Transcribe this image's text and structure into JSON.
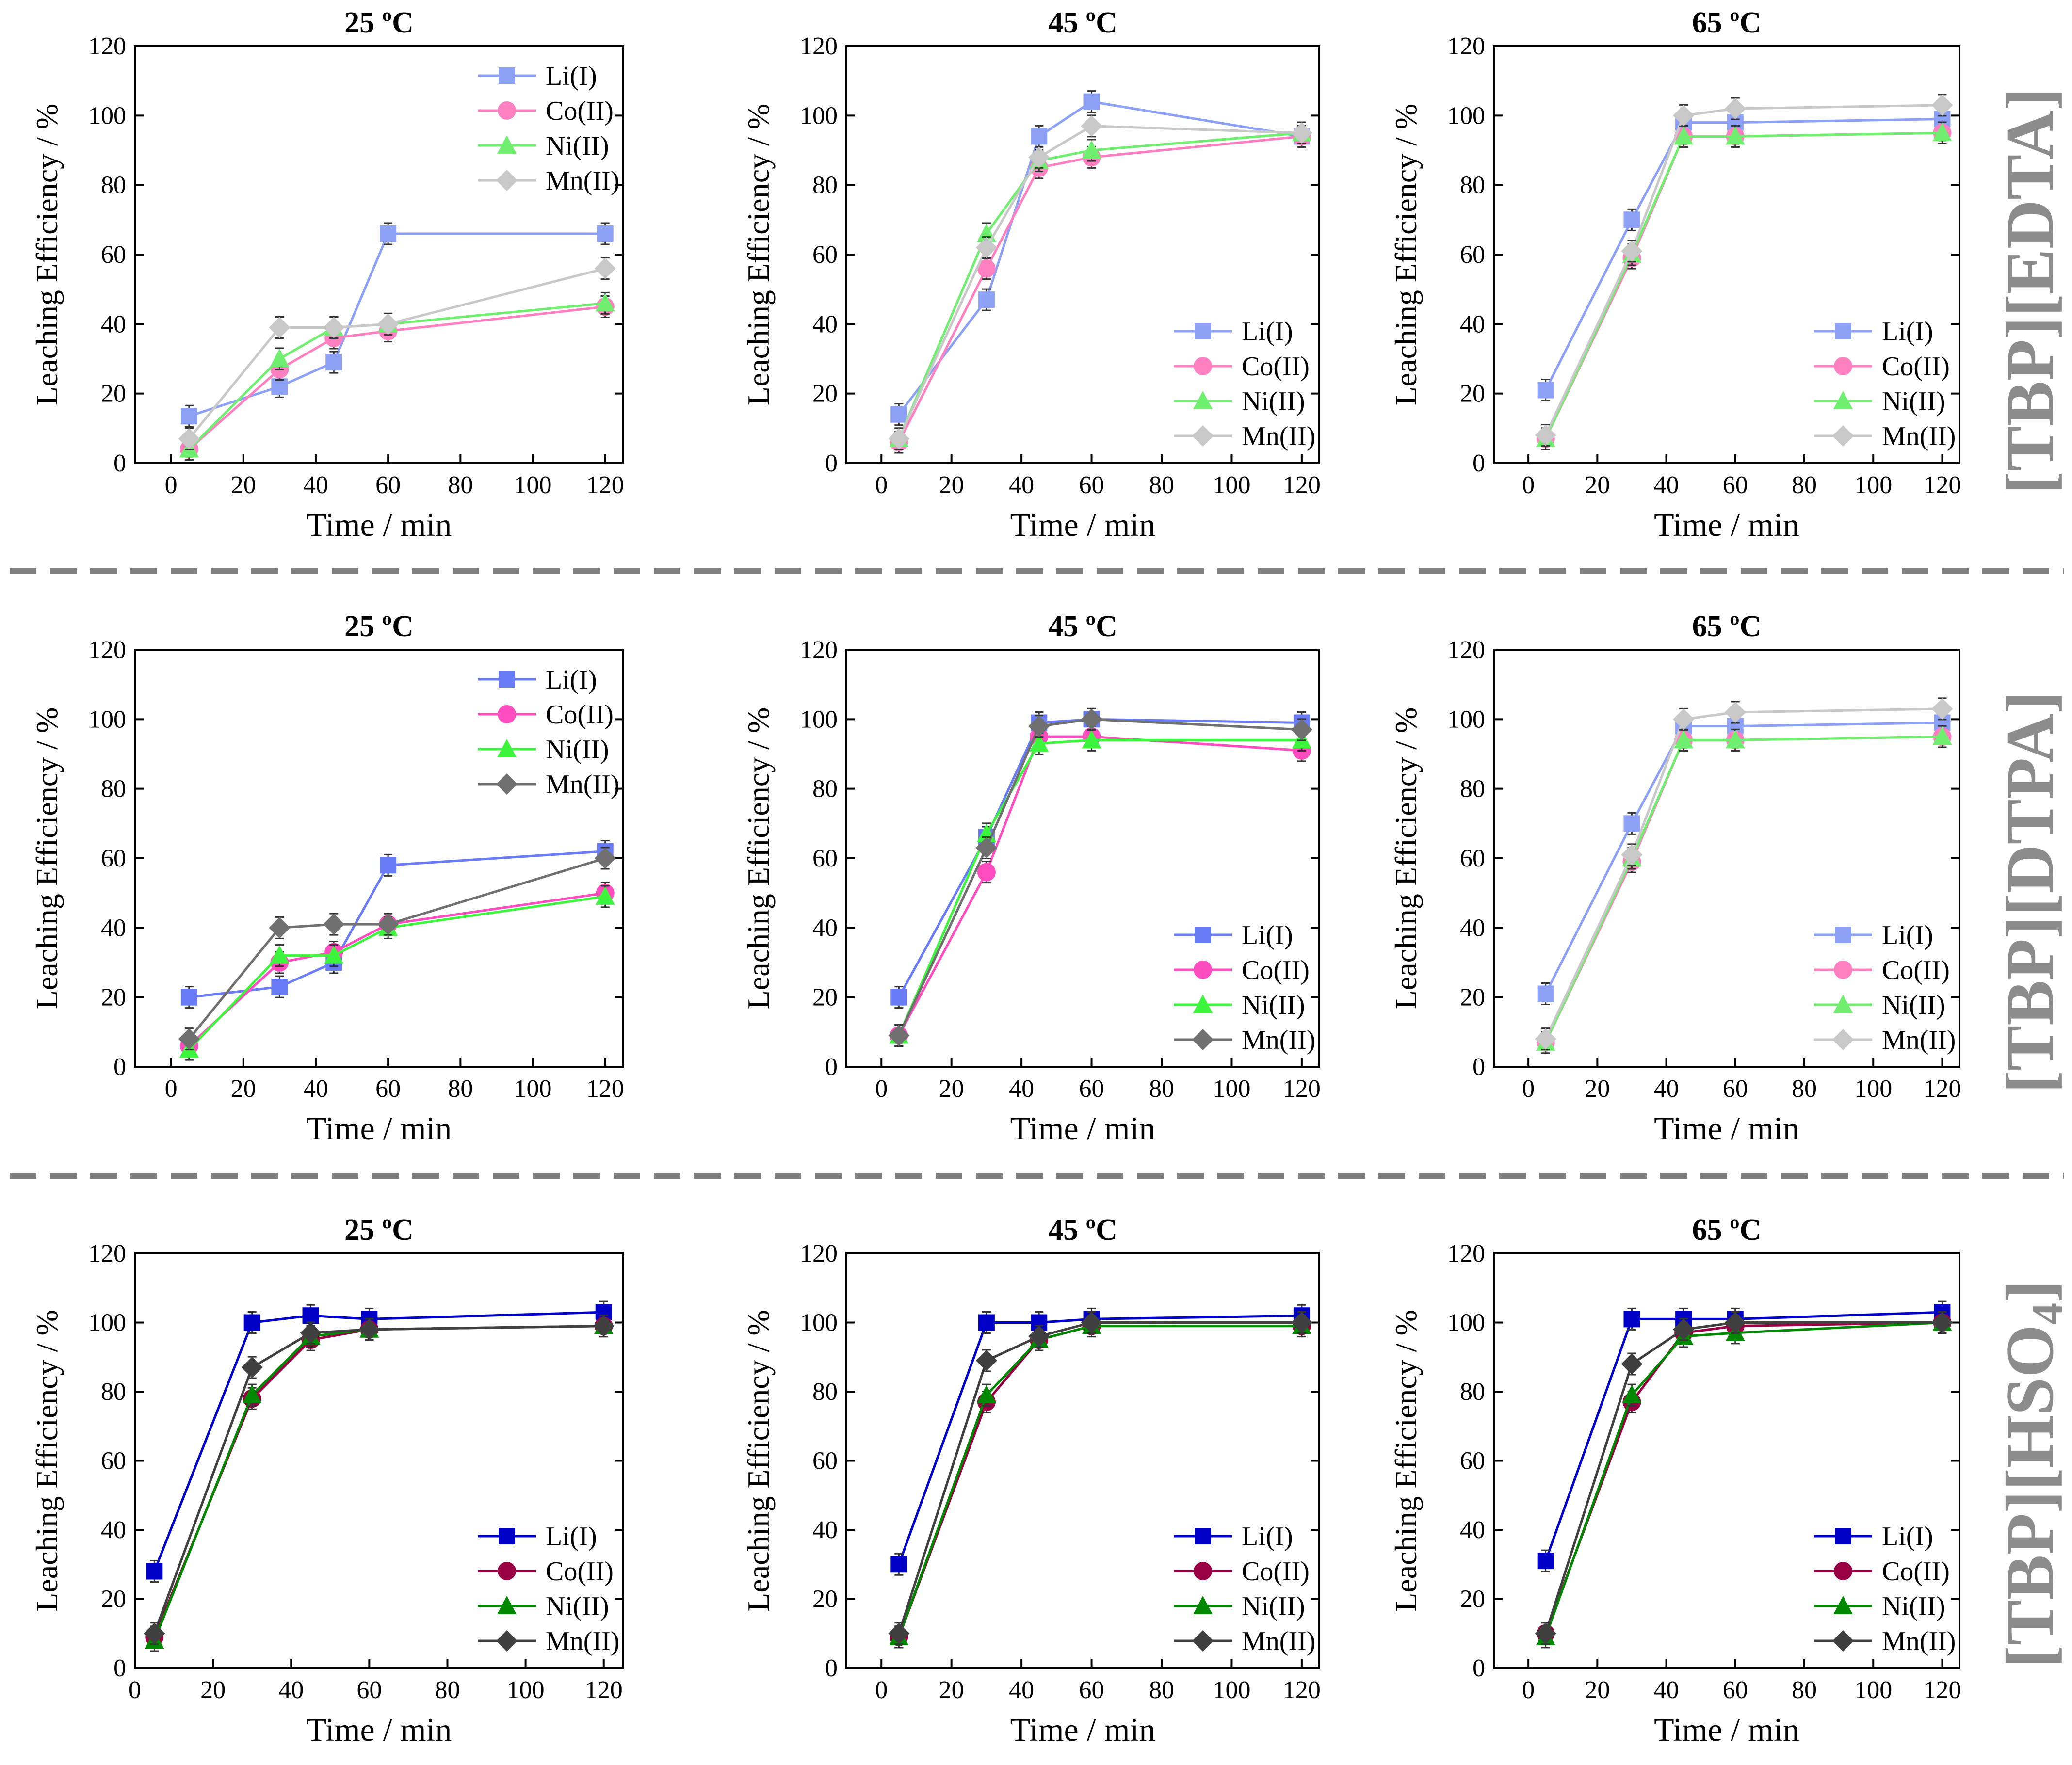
{
  "figure": {
    "row_labels": [
      {
        "prefix": "[TBP][EDTA]",
        "subscript": ""
      },
      {
        "prefix": "[TBP][DTPA]",
        "subscript": ""
      },
      {
        "prefix": "[TBP][HSO",
        "subscript": "4",
        "suffix": "]"
      }
    ],
    "row_label_color": "#8c8c8c",
    "divider_color": "#808080"
  },
  "chart_data": [
    {
      "type": "line",
      "row": 0,
      "col": 0,
      "title": "25 ºC",
      "xlabel": "Time / min",
      "ylabel": "Leaching Efficiency / %",
      "xlim": [
        -10,
        125
      ],
      "ylim": [
        0,
        120
      ],
      "xticks": [
        0,
        20,
        40,
        60,
        80,
        100,
        120
      ],
      "yticks": [
        0,
        20,
        40,
        60,
        80,
        100,
        120
      ],
      "legend": "top-right",
      "palette": "light",
      "x": [
        5,
        30,
        45,
        60,
        120
      ],
      "series": [
        {
          "name": "Li(I)",
          "marker": "square",
          "values": [
            13.5,
            22,
            29,
            66,
            66
          ]
        },
        {
          "name": "Co(II)",
          "marker": "circle",
          "values": [
            4,
            27,
            36,
            38,
            45
          ]
        },
        {
          "name": "Ni(II)",
          "marker": "triangle",
          "values": [
            4,
            30,
            39,
            40,
            46
          ]
        },
        {
          "name": "Mn(II)",
          "marker": "diamond",
          "values": [
            7,
            39,
            39,
            40,
            56
          ]
        }
      ]
    },
    {
      "type": "line",
      "row": 0,
      "col": 1,
      "title": "45 ºC",
      "xlabel": "Time / min",
      "ylabel": "Leaching Efficiency / %",
      "xlim": [
        -10,
        125
      ],
      "ylim": [
        0,
        120
      ],
      "xticks": [
        0,
        20,
        40,
        60,
        80,
        100,
        120
      ],
      "yticks": [
        0,
        20,
        40,
        60,
        80,
        100,
        120
      ],
      "legend": "bottom-right",
      "palette": "light",
      "x": [
        5,
        30,
        45,
        60,
        120
      ],
      "series": [
        {
          "name": "Li(I)",
          "marker": "square",
          "values": [
            14,
            47,
            94,
            104,
            94
          ]
        },
        {
          "name": "Co(II)",
          "marker": "circle",
          "values": [
            6,
            56,
            85,
            88,
            94
          ]
        },
        {
          "name": "Ni(II)",
          "marker": "triangle",
          "values": [
            7,
            66,
            87,
            90,
            95
          ]
        },
        {
          "name": "Mn(II)",
          "marker": "diamond",
          "values": [
            7,
            62,
            88,
            97,
            95
          ]
        }
      ]
    },
    {
      "type": "line",
      "row": 0,
      "col": 2,
      "title": "65 ºC",
      "xlabel": "Time / min",
      "ylabel": "Leaching Efficiency / %",
      "xlim": [
        -10,
        125
      ],
      "ylim": [
        0,
        120
      ],
      "xticks": [
        0,
        20,
        40,
        60,
        80,
        100,
        120
      ],
      "yticks": [
        0,
        20,
        40,
        60,
        80,
        100,
        120
      ],
      "legend": "bottom-right",
      "palette": "light",
      "x": [
        5,
        30,
        45,
        60,
        120
      ],
      "series": [
        {
          "name": "Li(I)",
          "marker": "square",
          "values": [
            21,
            70,
            98,
            98,
            99
          ]
        },
        {
          "name": "Co(II)",
          "marker": "circle",
          "values": [
            7,
            59,
            94,
            94,
            95
          ]
        },
        {
          "name": "Ni(II)",
          "marker": "triangle",
          "values": [
            7,
            60,
            94,
            94,
            95
          ]
        },
        {
          "name": "Mn(II)",
          "marker": "diamond",
          "values": [
            8,
            61,
            100,
            102,
            103
          ]
        }
      ]
    },
    {
      "type": "line",
      "row": 1,
      "col": 0,
      "title": "25 ºC",
      "xlabel": "Time / min",
      "ylabel": "Leaching Efficiency / %",
      "xlim": [
        -10,
        125
      ],
      "ylim": [
        0,
        120
      ],
      "xticks": [
        0,
        20,
        40,
        60,
        80,
        100,
        120
      ],
      "yticks": [
        0,
        20,
        40,
        60,
        80,
        100,
        120
      ],
      "legend": "top-right",
      "palette": "mid",
      "x": [
        5,
        30,
        45,
        60,
        120
      ],
      "series": [
        {
          "name": "Li(I)",
          "marker": "square",
          "values": [
            20,
            23,
            30,
            58,
            62
          ]
        },
        {
          "name": "Co(II)",
          "marker": "circle",
          "values": [
            6,
            30,
            33,
            41,
            50
          ]
        },
        {
          "name": "Ni(II)",
          "marker": "triangle",
          "values": [
            5,
            32,
            32,
            40,
            49
          ]
        },
        {
          "name": "Mn(II)",
          "marker": "diamond",
          "values": [
            8,
            40,
            41,
            41,
            60
          ]
        }
      ]
    },
    {
      "type": "line",
      "row": 1,
      "col": 1,
      "title": "45 ºC",
      "xlabel": "Time / min",
      "ylabel": "Leaching Efficiency / %",
      "xlim": [
        -10,
        125
      ],
      "ylim": [
        0,
        120
      ],
      "xticks": [
        0,
        20,
        40,
        60,
        80,
        100,
        120
      ],
      "yticks": [
        0,
        20,
        40,
        60,
        80,
        100,
        120
      ],
      "legend": "bottom-right",
      "palette": "mid",
      "x": [
        5,
        30,
        45,
        60,
        120
      ],
      "series": [
        {
          "name": "Li(I)",
          "marker": "square",
          "values": [
            20,
            66,
            99,
            100,
            99
          ]
        },
        {
          "name": "Co(II)",
          "marker": "circle",
          "values": [
            9,
            56,
            95,
            95,
            91
          ]
        },
        {
          "name": "Ni(II)",
          "marker": "triangle",
          "values": [
            9,
            67,
            93,
            94,
            94
          ]
        },
        {
          "name": "Mn(II)",
          "marker": "diamond",
          "values": [
            9,
            63,
            98,
            100,
            97
          ]
        }
      ]
    },
    {
      "type": "line",
      "row": 1,
      "col": 2,
      "title": "65 ºC",
      "xlabel": "Time / min",
      "ylabel": "Leaching Efficiency / %",
      "xlim": [
        -10,
        125
      ],
      "ylim": [
        0,
        120
      ],
      "xticks": [
        0,
        20,
        40,
        60,
        80,
        100,
        120
      ],
      "yticks": [
        0,
        20,
        40,
        60,
        80,
        100,
        120
      ],
      "legend": "bottom-right",
      "palette": "light",
      "x": [
        5,
        30,
        45,
        60,
        120
      ],
      "series": [
        {
          "name": "Li(I)",
          "marker": "square",
          "values": [
            21,
            70,
            98,
            98,
            99
          ]
        },
        {
          "name": "Co(II)",
          "marker": "circle",
          "values": [
            7,
            59,
            94,
            94,
            95
          ]
        },
        {
          "name": "Ni(II)",
          "marker": "triangle",
          "values": [
            7,
            60,
            94,
            94,
            95
          ]
        },
        {
          "name": "Mn(II)",
          "marker": "diamond",
          "values": [
            8,
            61,
            100,
            102,
            103
          ]
        }
      ]
    },
    {
      "type": "line",
      "row": 2,
      "col": 0,
      "title": "25 ºC",
      "xlabel": "Time / min",
      "ylabel": "Leaching Efficiency / %",
      "xlim": [
        0,
        125
      ],
      "ylim": [
        0,
        120
      ],
      "xticks": [
        0,
        20,
        40,
        60,
        80,
        100,
        120
      ],
      "yticks": [
        0,
        20,
        40,
        60,
        80,
        100,
        120
      ],
      "legend": "bottom-right",
      "palette": "dark",
      "x": [
        5,
        30,
        45,
        60,
        120
      ],
      "series": [
        {
          "name": "Li(I)",
          "marker": "square",
          "values": [
            28,
            100,
            102,
            101,
            103
          ]
        },
        {
          "name": "Co(II)",
          "marker": "circle",
          "values": [
            9,
            78,
            95,
            98,
            99
          ]
        },
        {
          "name": "Ni(II)",
          "marker": "triangle",
          "values": [
            8,
            79,
            96,
            98,
            99
          ]
        },
        {
          "name": "Mn(II)",
          "marker": "diamond",
          "values": [
            10,
            87,
            97,
            98,
            99
          ]
        }
      ]
    },
    {
      "type": "line",
      "row": 2,
      "col": 1,
      "title": "45 ºC",
      "xlabel": "Time / min",
      "ylabel": "Leaching Efficiency / %",
      "xlim": [
        -10,
        125
      ],
      "ylim": [
        0,
        120
      ],
      "xticks": [
        0,
        20,
        40,
        60,
        80,
        100,
        120
      ],
      "yticks": [
        0,
        20,
        40,
        60,
        80,
        100,
        120
      ],
      "legend": "bottom-right",
      "palette": "dark",
      "x": [
        5,
        30,
        45,
        60,
        120
      ],
      "series": [
        {
          "name": "Li(I)",
          "marker": "square",
          "values": [
            30,
            100,
            100,
            101,
            102
          ]
        },
        {
          "name": "Co(II)",
          "marker": "circle",
          "values": [
            9,
            77,
            95,
            99,
            99
          ]
        },
        {
          "name": "Ni(II)",
          "marker": "triangle",
          "values": [
            9,
            79,
            95,
            99,
            99
          ]
        },
        {
          "name": "Mn(II)",
          "marker": "diamond",
          "values": [
            10,
            89,
            96,
            100,
            100
          ]
        }
      ]
    },
    {
      "type": "line",
      "row": 2,
      "col": 2,
      "title": "65 ºC",
      "xlabel": "Time / min",
      "ylabel": "Leaching Efficiency / %",
      "xlim": [
        -10,
        125
      ],
      "ylim": [
        0,
        120
      ],
      "xticks": [
        0,
        20,
        40,
        60,
        80,
        100,
        120
      ],
      "yticks": [
        0,
        20,
        40,
        60,
        80,
        100,
        120
      ],
      "legend": "bottom-right",
      "palette": "dark",
      "x": [
        5,
        30,
        45,
        60,
        120
      ],
      "series": [
        {
          "name": "Li(I)",
          "marker": "square",
          "values": [
            31,
            101,
            101,
            101,
            103
          ]
        },
        {
          "name": "Co(II)",
          "marker": "circle",
          "values": [
            10,
            77,
            97,
            99,
            100
          ]
        },
        {
          "name": "Ni(II)",
          "marker": "triangle",
          "values": [
            9,
            79,
            96,
            97,
            100
          ]
        },
        {
          "name": "Mn(II)",
          "marker": "diamond",
          "values": [
            10,
            88,
            98,
            100,
            100
          ]
        }
      ]
    }
  ],
  "palettes": {
    "light": [
      "#8ca0f5",
      "#ff80c0",
      "#70ee70",
      "#c8c8c8"
    ],
    "mid": [
      "#6a7cf5",
      "#ff4dbf",
      "#3df53d",
      "#707070"
    ],
    "dark": [
      "#0000c8",
      "#990044",
      "#008800",
      "#404040"
    ]
  }
}
